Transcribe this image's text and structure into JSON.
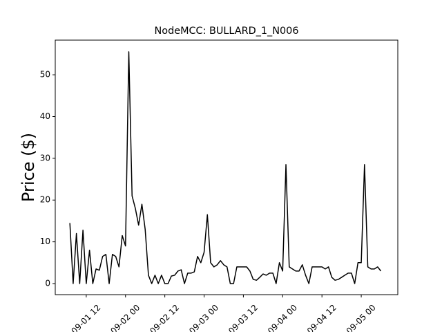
{
  "chart_data": {
    "type": "line",
    "title": "NodeMCC: BULLARD_1_N006",
    "ylabel": "Price ($)",
    "x": [
      "09-01 07:00",
      "09-01 08:00",
      "09-01 09:00",
      "09-01 10:00",
      "09-01 11:00",
      "09-01 12:00",
      "09-01 13:00",
      "09-01 14:00",
      "09-01 15:00",
      "09-01 16:00",
      "09-01 17:00",
      "09-01 18:00",
      "09-01 19:00",
      "09-01 20:00",
      "09-01 21:00",
      "09-01 22:00",
      "09-01 23:00",
      "09-02 00:00",
      "09-02 01:00",
      "09-02 02:00",
      "09-02 03:00",
      "09-02 04:00",
      "09-02 05:00",
      "09-02 06:00",
      "09-02 07:00",
      "09-02 08:00",
      "09-02 09:00",
      "09-02 10:00",
      "09-02 11:00",
      "09-02 12:00",
      "09-02 13:00",
      "09-02 14:00",
      "09-02 15:00",
      "09-02 16:00",
      "09-02 17:00",
      "09-02 18:00",
      "09-02 19:00",
      "09-02 20:00",
      "09-02 21:00",
      "09-02 22:00",
      "09-02 23:00",
      "09-03 00:00",
      "09-03 01:00",
      "09-03 02:00",
      "09-03 03:00",
      "09-03 04:00",
      "09-03 05:00",
      "09-03 06:00",
      "09-03 07:00",
      "09-03 08:00",
      "09-03 09:00",
      "09-03 10:00",
      "09-03 11:00",
      "09-03 12:00",
      "09-03 13:00",
      "09-03 14:00",
      "09-03 15:00",
      "09-03 16:00",
      "09-03 17:00",
      "09-03 18:00",
      "09-03 19:00",
      "09-03 20:00",
      "09-03 21:00",
      "09-03 22:00",
      "09-03 23:00",
      "09-04 00:00",
      "09-04 01:00",
      "09-04 02:00",
      "09-04 03:00",
      "09-04 04:00",
      "09-04 05:00",
      "09-04 06:00",
      "09-04 07:00",
      "09-04 08:00",
      "09-04 09:00",
      "09-04 10:00",
      "09-04 11:00",
      "09-04 12:00",
      "09-04 13:00",
      "09-04 14:00",
      "09-04 15:00",
      "09-04 16:00",
      "09-04 17:00",
      "09-04 18:00",
      "09-04 19:00",
      "09-04 20:00",
      "09-04 21:00",
      "09-04 22:00",
      "09-04 23:00",
      "09-05 00:00",
      "09-05 01:00",
      "09-05 02:00",
      "09-05 03:00",
      "09-05 04:00",
      "09-05 05:00",
      "09-05 06:00"
    ],
    "series": [
      {
        "color": "#000000",
        "values": [
          14.5,
          0,
          12,
          0,
          12.8,
          0,
          8,
          0,
          3.5,
          3.2,
          6.5,
          7,
          0,
          7,
          6.5,
          4,
          11.5,
          9,
          55.5,
          21,
          18,
          14,
          19,
          13,
          2,
          0,
          2,
          0,
          2,
          0,
          0,
          1.8,
          2,
          3,
          3.3,
          0,
          2.5,
          2.5,
          2.8,
          6.5,
          5,
          7.5,
          16.5,
          5,
          4,
          4.5,
          5.5,
          4.5,
          4,
          0,
          0,
          4,
          4,
          4,
          4,
          3,
          1,
          0.8,
          1.5,
          2.3,
          2,
          2.5,
          2.5,
          0,
          5,
          3,
          28.5,
          4,
          3.5,
          3,
          3,
          4.5,
          2,
          0,
          4,
          4,
          4,
          4,
          3.5,
          4,
          1.5,
          0.8,
          1,
          1.5,
          2,
          2.5,
          2.5,
          0,
          5,
          5,
          28.5,
          4,
          3.5,
          3.5,
          4,
          3
        ]
      }
    ],
    "xlim": [
      "09-01 02:32",
      "09-05 11:10"
    ],
    "xticks": [
      {
        "value": "09-01 12:00",
        "label": "09-01 12"
      },
      {
        "value": "09-02 00:00",
        "label": "09-02 00"
      },
      {
        "value": "09-02 12:00",
        "label": "09-02 12"
      },
      {
        "value": "09-03 00:00",
        "label": "09-03 00"
      },
      {
        "value": "09-03 12:00",
        "label": "09-03 12"
      },
      {
        "value": "09-04 00:00",
        "label": "09-04 00"
      },
      {
        "value": "09-04 12:00",
        "label": "09-04 12"
      },
      {
        "value": "09-05 00:00",
        "label": "09-05 00"
      }
    ],
    "ylim": [
      -2.65,
      58.3
    ],
    "yticks": [
      0,
      10,
      20,
      30,
      40,
      50
    ]
  }
}
